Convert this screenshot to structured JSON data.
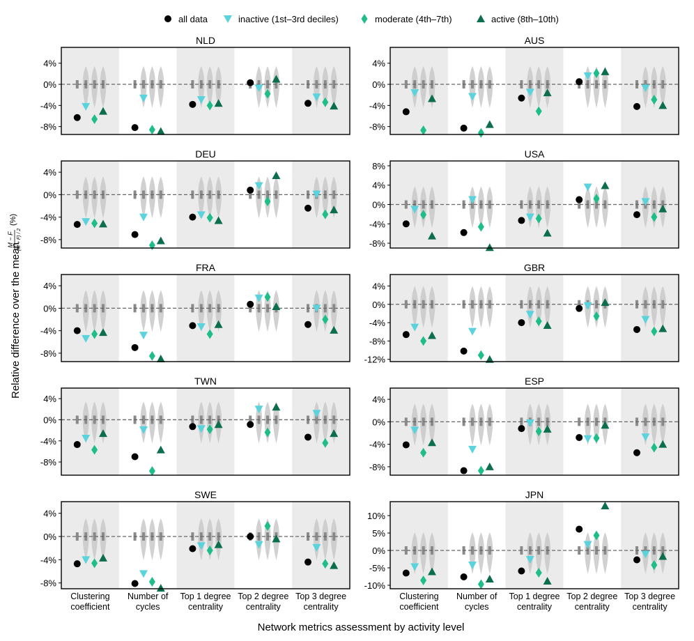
{
  "chart_data": {
    "type": "scatter",
    "xlabel": "Network metrics assessment by activity level",
    "ylabel": "Relative difference over the mean",
    "ylabel_formula": "M − F",
    "ylabel_formula_den": "(M + F) / 2",
    "ylabel_unit": "(%)",
    "categories": [
      "Clustering coefficient",
      "Number of cycles",
      "Top 1 degree centrality",
      "Top 2 degree centrality",
      "Top 3 degree centrality"
    ],
    "category_lines": [
      [
        "Clustering",
        "coefficient"
      ],
      [
        "Number of",
        "cycles"
      ],
      [
        "Top 1 degree",
        "centrality"
      ],
      [
        "Top 2 degree",
        "centrality"
      ],
      [
        "Top 3 degree",
        "centrality"
      ]
    ],
    "legend": [
      {
        "key": "all",
        "label": "all data",
        "marker": "circle",
        "color": "#000000"
      },
      {
        "key": "inactive",
        "label": "inactive (1st–3rd deciles)",
        "marker": "triangle-down",
        "color": "#5bd3dc"
      },
      {
        "key": "moderate",
        "label": "moderate (4th–7th)",
        "marker": "diamond",
        "color": "#1fbd8a"
      },
      {
        "key": "active",
        "label": "active (8th–10th)",
        "marker": "triangle-up",
        "color": "#0d6e4c"
      }
    ],
    "panels": [
      {
        "country": "NLD",
        "ylim": [
          -9.5,
          7
        ],
        "yticks": [
          4,
          0,
          -4,
          -8
        ],
        "tick_suffix": "%",
        "series": {
          "all": [
            -6.3,
            -8.2,
            -3.8,
            0.3,
            -3.6
          ],
          "inactive": [
            -4.2,
            -2.6,
            -2.9,
            -0.7,
            -2.4
          ],
          "moderate": [
            -6.6,
            -8.6,
            -4.0,
            -1.8,
            -3.4
          ],
          "active": [
            -5.1,
            -8.9,
            -3.6,
            1.0,
            -4.1
          ]
        }
      },
      {
        "country": "AUS",
        "ylim": [
          -9.5,
          7
        ],
        "yticks": [
          4,
          0,
          -4,
          -8
        ],
        "tick_suffix": "%",
        "series": {
          "all": [
            -5.2,
            -8.3,
            -2.6,
            0.5,
            -4.2
          ],
          "inactive": [
            -1.6,
            -2.3,
            -1.5,
            1.6,
            -0.7
          ],
          "moderate": [
            -8.7,
            -9.2,
            -5.1,
            2.1,
            -2.9
          ],
          "active": [
            -2.7,
            -7.6,
            -1.6,
            2.4,
            -4.0
          ]
        }
      },
      {
        "country": "DEU",
        "ylim": [
          -9.5,
          6
        ],
        "yticks": [
          4,
          0,
          -4,
          -8
        ],
        "tick_suffix": "%",
        "series": {
          "all": [
            -5.3,
            -7.1,
            -4.0,
            0.8,
            -2.4
          ],
          "inactive": [
            -4.8,
            -4.0,
            -3.6,
            1.6,
            0.1
          ],
          "moderate": [
            -5.1,
            -9.0,
            -4.1,
            -1.2,
            -3.5
          ],
          "active": [
            -5.2,
            -8.2,
            -4.6,
            3.4,
            -2.7
          ]
        }
      },
      {
        "country": "USA",
        "ylim": [
          -9,
          9
        ],
        "yticks": [
          8,
          4,
          0,
          -4,
          -8
        ],
        "tick_suffix": "%",
        "series": {
          "all": [
            -4.0,
            -5.8,
            -3.3,
            1.0,
            -2.1
          ],
          "inactive": [
            -1.0,
            1.0,
            -2.6,
            3.6,
            0.6
          ],
          "moderate": [
            -2.1,
            -4.6,
            -2.9,
            1.2,
            -2.6
          ],
          "active": [
            -6.5,
            -8.9,
            -5.9,
            3.9,
            -0.9
          ]
        }
      },
      {
        "country": "FRA",
        "ylim": [
          -9.5,
          6
        ],
        "yticks": [
          4,
          0,
          -4,
          -8
        ],
        "tick_suffix": "%",
        "series": {
          "all": [
            -4.0,
            -7.0,
            -3.1,
            0.7,
            -2.9
          ],
          "inactive": [
            -5.4,
            -4.8,
            -3.3,
            1.8,
            0.0
          ],
          "moderate": [
            -4.6,
            -8.5,
            -4.6,
            2.0,
            -2.0
          ],
          "active": [
            -4.3,
            -9.0,
            -2.9,
            0.3,
            -3.9
          ]
        }
      },
      {
        "country": "GBR",
        "ylim": [
          -12.5,
          6.5
        ],
        "yticks": [
          4,
          0,
          -4,
          -8,
          -12
        ],
        "tick_suffix": "%",
        "series": {
          "all": [
            -6.6,
            -10.2,
            -4.0,
            -0.9,
            -5.5
          ],
          "inactive": [
            -5.0,
            -5.9,
            -2.2,
            -0.3,
            -3.3
          ],
          "moderate": [
            -8.0,
            -11.1,
            -3.7,
            -2.6,
            -5.9
          ],
          "active": [
            -6.8,
            -12.0,
            -4.6,
            0.4,
            -5.3
          ]
        }
      },
      {
        "country": "TWN",
        "ylim": [
          -10.5,
          6
        ],
        "yticks": [
          4,
          0,
          -4,
          -8
        ],
        "tick_suffix": "%",
        "series": {
          "all": [
            -4.7,
            -7.0,
            -1.3,
            -0.9,
            -3.3
          ],
          "inactive": [
            -3.5,
            -1.9,
            -1.7,
            2.0,
            1.2
          ],
          "moderate": [
            -5.7,
            -9.7,
            -1.8,
            -2.4,
            -4.4
          ],
          "active": [
            -2.6,
            -5.7,
            -0.9,
            2.4,
            -2.6
          ]
        }
      },
      {
        "country": "ESP",
        "ylim": [
          -9.5,
          6
        ],
        "yticks": [
          4,
          0,
          -4,
          -8
        ],
        "tick_suffix": "%",
        "series": {
          "all": [
            -4.1,
            -8.7,
            -1.2,
            -2.8,
            -5.5
          ],
          "inactive": [
            -1.5,
            -4.9,
            -0.2,
            -3.0,
            -2.7
          ],
          "moderate": [
            -5.5,
            -8.7,
            -1.7,
            -2.9,
            -4.6
          ],
          "active": [
            -3.7,
            -8.0,
            -1.3,
            -0.6,
            -4.0
          ]
        }
      },
      {
        "country": "SWE",
        "ylim": [
          -9,
          6
        ],
        "yticks": [
          4,
          0,
          -4,
          -8
        ],
        "tick_suffix": "%",
        "series": {
          "all": [
            -4.7,
            -8.1,
            -2.1,
            0.0,
            -4.4
          ],
          "inactive": [
            -4.0,
            -6.4,
            -1.6,
            -1.4,
            -1.9
          ],
          "moderate": [
            -4.6,
            -7.8,
            -2.4,
            1.8,
            -4.7
          ],
          "active": [
            -3.7,
            -8.9,
            -1.4,
            -0.4,
            -5.0
          ]
        }
      },
      {
        "country": "JPN",
        "ylim": [
          -11,
          14
        ],
        "yticks": [
          10,
          5,
          0,
          -5,
          -10
        ],
        "tick_suffix": "%",
        "series": {
          "all": [
            -6.5,
            -7.6,
            -5.9,
            6.1,
            -2.7
          ],
          "inactive": [
            -4.7,
            -4.2,
            -2.6,
            1.7,
            -1.1
          ],
          "moderate": [
            -8.6,
            -9.7,
            -6.4,
            4.3,
            -4.2
          ],
          "active": [
            -6.1,
            -8.2,
            -8.8,
            12.8,
            -1.7
          ]
        }
      }
    ]
  }
}
